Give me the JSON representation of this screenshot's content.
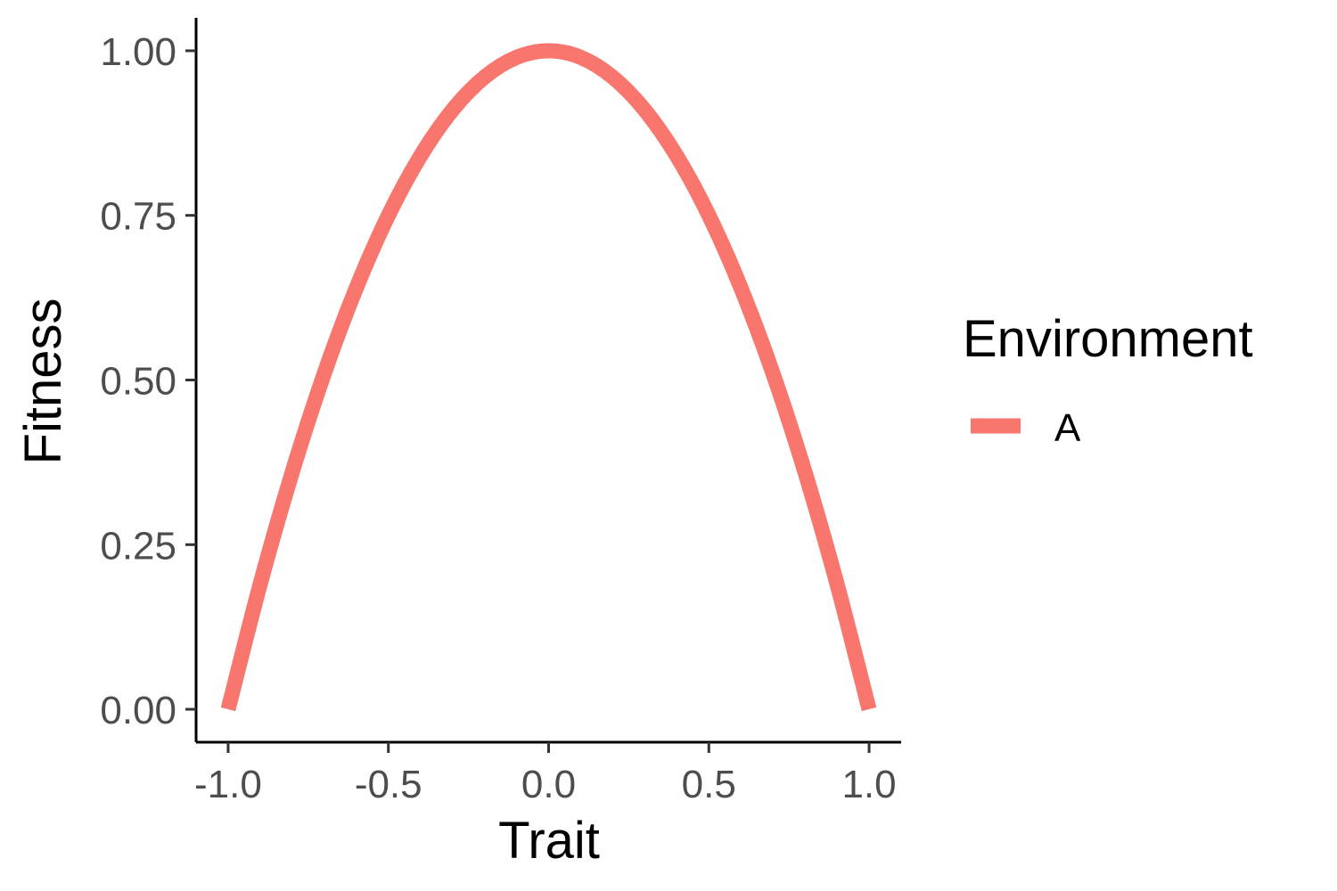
{
  "chart_data": {
    "type": "line",
    "xlabel": "Trait",
    "ylabel": "Fitness",
    "xlim": [
      -1.1,
      1.1
    ],
    "ylim": [
      -0.05,
      1.05
    ],
    "x_ticks": [
      -1.0,
      -0.5,
      0.0,
      0.5,
      1.0
    ],
    "x_tick_labels": [
      "-1.0",
      "-0.5",
      "0.0",
      "0.5",
      "1.0"
    ],
    "y_ticks": [
      0,
      0.25,
      0.5,
      0.75,
      1.0
    ],
    "y_tick_labels": [
      "0.00",
      "0.25",
      "0.50",
      "0.75",
      "1.00"
    ],
    "grid": false,
    "legend": {
      "title": "Environment",
      "placement": "right"
    },
    "series": [
      {
        "name": "A",
        "color": "#F8766D",
        "x": [
          -1.0,
          -0.9,
          -0.8,
          -0.7,
          -0.6,
          -0.5,
          -0.4,
          -0.3,
          -0.2,
          -0.1,
          0.0,
          0.1,
          0.2,
          0.3,
          0.4,
          0.5,
          0.6,
          0.7,
          0.8,
          0.9,
          1.0
        ],
        "y": [
          0.0,
          0.19,
          0.36,
          0.51,
          0.64,
          0.75,
          0.84,
          0.91,
          0.96,
          0.99,
          1.0,
          0.99,
          0.96,
          0.91,
          0.84,
          0.75,
          0.64,
          0.51,
          0.36,
          0.19,
          0.0
        ]
      }
    ]
  }
}
